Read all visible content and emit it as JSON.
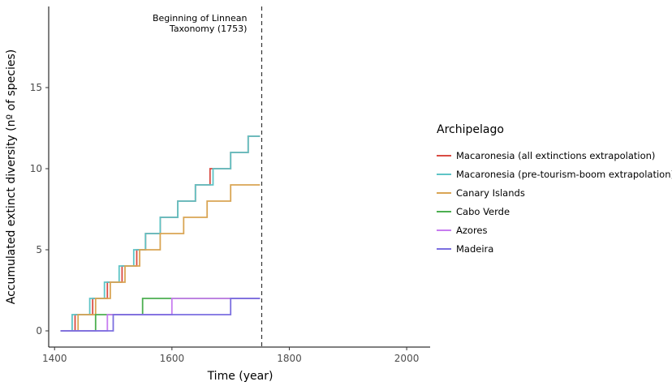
{
  "chart_data": {
    "type": "line",
    "step": true,
    "xlabel": "Time (year)",
    "ylabel": "Accumulated extinct diversity (nº of species)",
    "xlim": [
      1390,
      2040
    ],
    "ylim": [
      -1,
      20
    ],
    "xticks": [
      1400,
      1600,
      1800,
      2000
    ],
    "yticks": [
      0,
      5,
      10,
      15
    ],
    "grid": false,
    "legend": {
      "title": "Archipelago",
      "placement": "right"
    },
    "annotation": {
      "x": 1753,
      "lines": [
        "Beginning of Linnean",
        "Taxonomy (1753)"
      ]
    },
    "series": [
      {
        "name": "Macaronesia (all extinctions extrapolation)",
        "color": "#d94b43",
        "points": [
          [
            1410,
            0
          ],
          [
            1435,
            0
          ],
          [
            1435,
            1
          ],
          [
            1465,
            1
          ],
          [
            1465,
            2
          ],
          [
            1490,
            2
          ],
          [
            1490,
            3
          ],
          [
            1515,
            3
          ],
          [
            1515,
            4
          ],
          [
            1540,
            4
          ],
          [
            1540,
            5
          ],
          [
            1555,
            5
          ],
          [
            1555,
            6
          ],
          [
            1580,
            6
          ],
          [
            1580,
            7
          ],
          [
            1610,
            7
          ],
          [
            1610,
            8
          ],
          [
            1640,
            8
          ],
          [
            1640,
            9
          ],
          [
            1665,
            9
          ],
          [
            1665,
            10
          ],
          [
            1700,
            10
          ],
          [
            1700,
            11
          ],
          [
            1730,
            11
          ],
          [
            1730,
            12
          ],
          [
            1750,
            12
          ]
        ]
      },
      {
        "name": "Macaronesia (pre-tourism-boom extrapolation)",
        "color": "#5ec4c6",
        "points": [
          [
            1410,
            0
          ],
          [
            1430,
            0
          ],
          [
            1430,
            1
          ],
          [
            1460,
            1
          ],
          [
            1460,
            2
          ],
          [
            1485,
            2
          ],
          [
            1485,
            3
          ],
          [
            1510,
            3
          ],
          [
            1510,
            4
          ],
          [
            1535,
            4
          ],
          [
            1535,
            5
          ],
          [
            1555,
            5
          ],
          [
            1555,
            6
          ],
          [
            1580,
            6
          ],
          [
            1580,
            7
          ],
          [
            1610,
            7
          ],
          [
            1610,
            8
          ],
          [
            1640,
            8
          ],
          [
            1640,
            9
          ],
          [
            1670,
            9
          ],
          [
            1670,
            10
          ],
          [
            1700,
            10
          ],
          [
            1700,
            11
          ],
          [
            1730,
            11
          ],
          [
            1730,
            12
          ],
          [
            1750,
            12
          ]
        ]
      },
      {
        "name": "Canary Islands",
        "color": "#d9a554",
        "points": [
          [
            1410,
            0
          ],
          [
            1440,
            0
          ],
          [
            1440,
            1
          ],
          [
            1470,
            1
          ],
          [
            1470,
            2
          ],
          [
            1495,
            2
          ],
          [
            1495,
            3
          ],
          [
            1520,
            3
          ],
          [
            1520,
            4
          ],
          [
            1545,
            4
          ],
          [
            1545,
            5
          ],
          [
            1580,
            5
          ],
          [
            1580,
            6
          ],
          [
            1620,
            6
          ],
          [
            1620,
            7
          ],
          [
            1660,
            7
          ],
          [
            1660,
            8
          ],
          [
            1700,
            8
          ],
          [
            1700,
            9
          ],
          [
            1750,
            9
          ]
        ]
      },
      {
        "name": "Cabo Verde",
        "color": "#4caf50",
        "points": [
          [
            1410,
            0
          ],
          [
            1470,
            0
          ],
          [
            1470,
            1
          ],
          [
            1550,
            1
          ],
          [
            1550,
            2
          ],
          [
            1750,
            2
          ]
        ]
      },
      {
        "name": "Azores",
        "color": "#c77cf0",
        "points": [
          [
            1410,
            0
          ],
          [
            1490,
            0
          ],
          [
            1490,
            1
          ],
          [
            1600,
            1
          ],
          [
            1600,
            2
          ],
          [
            1750,
            2
          ]
        ]
      },
      {
        "name": "Madeira",
        "color": "#7b6fe0",
        "points": [
          [
            1410,
            0
          ],
          [
            1500,
            0
          ],
          [
            1500,
            1
          ],
          [
            1700,
            1
          ],
          [
            1700,
            2
          ],
          [
            1750,
            2
          ]
        ]
      }
    ]
  }
}
